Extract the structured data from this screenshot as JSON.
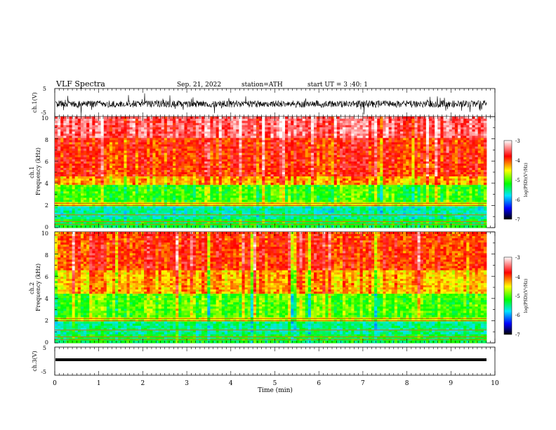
{
  "header": {
    "title": "VLF  Spectra",
    "date": "Sep. 21, 2022",
    "station": "station=ATH",
    "start": "start  UT  =   3  :40: 1"
  },
  "colorbar": {
    "label": "log(PSD)(V²/Hz)",
    "ticks": [
      "-3",
      "-4",
      "-5",
      "-6",
      "-7"
    ],
    "stops": [
      "#000000",
      "#0000ff",
      "#00e5ff",
      "#00ff00",
      "#ffff00",
      "#ff0000",
      "#ffffff"
    ]
  },
  "chart_data": [
    {
      "type": "line",
      "panel": "ch1-waveform",
      "ylabel": "ch.1(V)",
      "ylim": [
        -5,
        5
      ],
      "yticks": [
        "5",
        "-5"
      ],
      "x_range_min": [
        0,
        9.83
      ],
      "series_summary": "noise band centered near -0.5 V, amplitude about ±1.5 V"
    },
    {
      "type": "heatmap",
      "panel": "ch1-spectrogram",
      "ylabel": "ch.1\nFrequency  (kHz)",
      "ylim_khz": [
        0,
        10
      ],
      "yticks": [
        "0",
        "2",
        "4",
        "6",
        "8",
        "10"
      ],
      "x_range_min": [
        0,
        9.83
      ],
      "clim": [
        -7,
        -3
      ],
      "bands": [
        {
          "khz": [
            0,
            0.8
          ],
          "level": -5.3
        },
        {
          "khz": [
            0.8,
            1.9
          ],
          "level": -5.6
        },
        {
          "khz": [
            1.9,
            2.3
          ],
          "level": -4.6
        },
        {
          "khz": [
            2.3,
            3.9
          ],
          "level": -5.1
        },
        {
          "khz": [
            3.9,
            4.7
          ],
          "level": -4.3
        },
        {
          "khz": [
            4.7,
            8.0
          ],
          "level": -3.9
        },
        {
          "khz": [
            8.0,
            10
          ],
          "level": -3.5
        }
      ]
    },
    {
      "type": "heatmap",
      "panel": "ch2-spectrogram",
      "ylabel": "ch.2\nFrequency  (kHz)",
      "ylim_khz": [
        0,
        10
      ],
      "yticks": [
        "0",
        "2",
        "4",
        "6",
        "8",
        "10"
      ],
      "x_range_min": [
        0,
        9.83
      ],
      "clim": [
        -7,
        -3
      ],
      "bands": [
        {
          "khz": [
            0,
            0.8
          ],
          "level": -5.3
        },
        {
          "khz": [
            0.8,
            1.9
          ],
          "level": -5.5
        },
        {
          "khz": [
            1.9,
            2.3
          ],
          "level": -4.7
        },
        {
          "khz": [
            2.3,
            4.5
          ],
          "level": -5.0
        },
        {
          "khz": [
            4.5,
            6.5
          ],
          "level": -4.3
        },
        {
          "khz": [
            6.5,
            10
          ],
          "level": -3.9
        }
      ]
    },
    {
      "type": "line",
      "panel": "ch3-waveform",
      "ylabel": "ch.3(V)",
      "ylim": [
        -5,
        5
      ],
      "yticks": [
        "5",
        "-5"
      ],
      "x_range_min": [
        0,
        9.83
      ],
      "series_summary": "flat line near -0.3 V"
    }
  ],
  "xaxis": {
    "label": "Time  (min)",
    "ticks": [
      "0",
      "1",
      "2",
      "3",
      "4",
      "5",
      "6",
      "7",
      "8",
      "9",
      "10"
    ],
    "range": [
      0,
      10
    ]
  }
}
